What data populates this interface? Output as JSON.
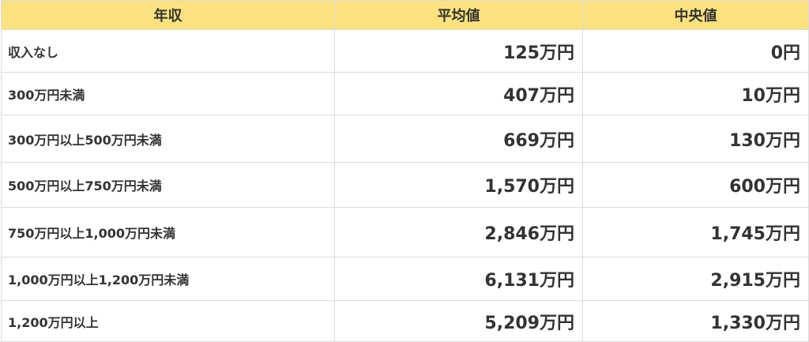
{
  "table": {
    "header": [
      "年収",
      "平均値",
      "中央値"
    ],
    "rows": [
      [
        "収入なし",
        "125万円",
        "0円"
      ],
      [
        "300万円未満",
        "407万円",
        "10万円"
      ],
      [
        "300万円以上500万円未満",
        "669万円",
        "130万円"
      ],
      [
        "500万円以上750万円未満",
        "1,570万円",
        "600万円"
      ],
      [
        "750万円以上1,000万円未満",
        "2,846万円",
        "1,745万円"
      ],
      [
        "1,000万円以上1,200万円未満",
        "6,131万円",
        "2,915万円"
      ],
      [
        "1,200万円以上",
        "5,209万円",
        "1,330万円"
      ]
    ]
  }
}
